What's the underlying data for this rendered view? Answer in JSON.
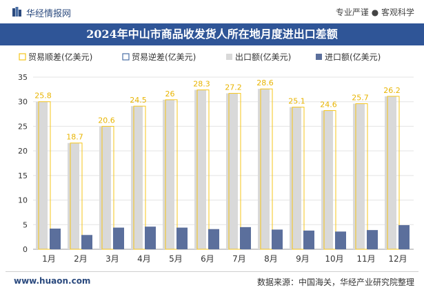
{
  "header": {
    "brand": "华经情报网",
    "slogan": "专业严谨 ● 客观科学"
  },
  "chart_data": {
    "type": "bar",
    "title": "2024年中山市商品收发货人所在地月度进出口差额",
    "categories": [
      "1月",
      "2月",
      "3月",
      "4月",
      "5月",
      "6月",
      "7月",
      "8月",
      "9月",
      "10月",
      "11月",
      "12月"
    ],
    "series": [
      {
        "name": "贸易顺差(亿美元)",
        "values": [
          25.8,
          18.7,
          20.6,
          24.5,
          26,
          28.3,
          27.2,
          28.6,
          25.1,
          24.6,
          25.7,
          26.2
        ],
        "color": "#f5c518",
        "style": "outline"
      },
      {
        "name": "贸易逆差(亿美元)",
        "values": [
          0,
          0,
          0,
          0,
          0,
          0,
          0,
          0,
          0,
          0,
          0,
          0
        ],
        "color": "#4a6fa5",
        "style": "outline"
      },
      {
        "name": "出口额(亿美元)",
        "values": [
          30,
          21.6,
          25,
          29.1,
          30.4,
          32.4,
          31.7,
          32.6,
          28.9,
          28.2,
          29.6,
          31.1
        ],
        "color": "#d9d9d9",
        "style": "fill"
      },
      {
        "name": "进口额(亿美元)",
        "values": [
          4.2,
          2.9,
          4.4,
          4.6,
          4.4,
          4.1,
          4.5,
          4.0,
          3.8,
          3.6,
          3.9,
          4.9
        ],
        "color": "#5b6f9c",
        "style": "fill"
      }
    ],
    "ylim": [
      0,
      35
    ],
    "yticks": [
      0,
      5,
      10,
      15,
      20,
      25,
      30,
      35
    ],
    "grid": true,
    "legend_position": "top"
  },
  "footer": {
    "website": "www.huaon.com",
    "source": "数据来源：中国海关，华经产业研究院整理"
  }
}
